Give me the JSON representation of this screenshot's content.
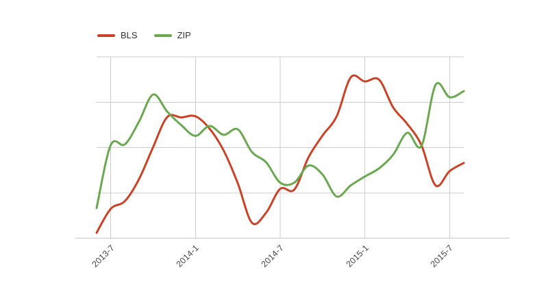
{
  "colors": {
    "background": "#ffffff",
    "grid": "#cccccc",
    "baseline": "#c2c2c2",
    "axis_text": "#444444",
    "legend_text": "#333333",
    "bls": "#cc4125",
    "zip": "#6aa84f"
  },
  "chart_data": {
    "type": "line",
    "title": "",
    "xlabel": "",
    "ylabel": "",
    "curve": "smooth",
    "grid": true,
    "y_axis_labeled": false,
    "ylim": [
      0,
      100
    ],
    "y_gridline_values": [
      25,
      50,
      75,
      100
    ],
    "x": [
      "2013-6",
      "2013-7",
      "2013-8",
      "2013-9",
      "2013-10",
      "2013-11",
      "2013-12",
      "2014-1",
      "2014-2",
      "2014-3",
      "2014-4",
      "2014-5",
      "2014-6",
      "2014-7",
      "2014-8",
      "2014-9",
      "2014-10",
      "2014-11",
      "2014-12",
      "2015-1",
      "2015-2",
      "2015-3",
      "2015-4",
      "2015-5",
      "2015-6",
      "2015-7",
      "2015-8"
    ],
    "x_tick_labels": [
      "2013-7",
      "2014-1",
      "2014-7",
      "2015-1",
      "2015-7"
    ],
    "x_tick_indices": [
      1,
      7,
      13,
      19,
      25
    ],
    "legend": {
      "position": "top-left",
      "entries": [
        "BLS",
        "ZIP"
      ]
    },
    "series": [
      {
        "name": "BLS",
        "color": "#cc4125",
        "values": [
          3.0,
          16.2,
          20.4,
          32.5,
          50.2,
          66.8,
          66.6,
          67.2,
          60.4,
          48.3,
          30.2,
          8.5,
          14.0,
          27.2,
          26.8,
          44.5,
          56.6,
          67.2,
          88.7,
          86.4,
          87.4,
          72.1,
          63.0,
          51.3,
          29.1,
          37.0,
          41.5
        ]
      },
      {
        "name": "ZIP",
        "color": "#6aa84f",
        "values": [
          16.6,
          51.3,
          51.7,
          64.2,
          79.2,
          69.8,
          62.3,
          56.4,
          61.9,
          57.0,
          60.0,
          47.5,
          41.9,
          30.6,
          30.6,
          40.0,
          35.1,
          23.0,
          29.1,
          34.0,
          38.5,
          46.0,
          58.1,
          50.9,
          84.5,
          77.7,
          81.1
        ]
      }
    ]
  }
}
